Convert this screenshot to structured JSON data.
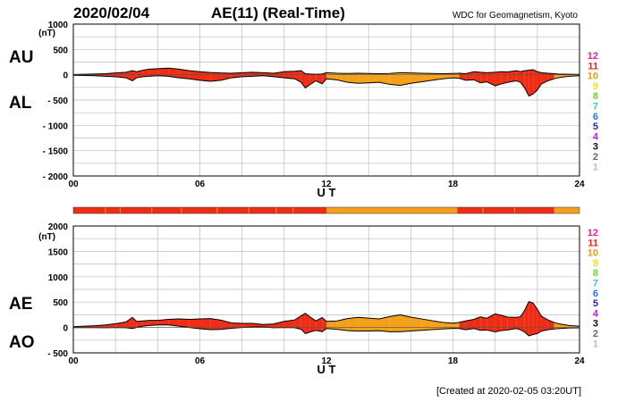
{
  "header": {
    "date": "2020/02/04",
    "title": "AE(11) (Real-Time)",
    "source": "WDC for Geomagnetism, Kyoto"
  },
  "footer": {
    "created": "[Created at 2020-02-05 03:20UT]"
  },
  "colors": {
    "active_fill": "#ee2d14",
    "quiet_fill": "#f3a11b",
    "outline": "#000000",
    "grid": "#bdbdbd"
  },
  "station_levels": [
    {
      "label": "12",
      "color": "#ee1f8c"
    },
    {
      "label": "11",
      "color": "#e8261a"
    },
    {
      "label": "10",
      "color": "#f29a12"
    },
    {
      "label": "9",
      "color": "#e9e21c"
    },
    {
      "label": "8",
      "color": "#79d12a"
    },
    {
      "label": "7",
      "color": "#34c6e0"
    },
    {
      "label": "6",
      "color": "#2474e6"
    },
    {
      "label": "5",
      "color": "#2b1fa6"
    },
    {
      "label": "4",
      "color": "#c21ddb"
    },
    {
      "label": "3",
      "color": "#111111"
    },
    {
      "label": "2",
      "color": "#666666"
    },
    {
      "label": "1",
      "color": "#bbbbbb"
    }
  ],
  "availability_bar": {
    "segments": [
      {
        "start": 0,
        "end": 12,
        "level": "11"
      },
      {
        "start": 12,
        "end": 18.2,
        "level": "10"
      },
      {
        "start": 18.2,
        "end": 22.8,
        "level": "11"
      },
      {
        "start": 22.8,
        "end": 24,
        "level": "10"
      }
    ]
  },
  "chart_data": [
    {
      "type": "area",
      "panel": "AU/AL",
      "series_labels": [
        "AU",
        "AL"
      ],
      "unit": "(nT)",
      "xlabel": "U T",
      "xlim": [
        0,
        24
      ],
      "ylim": [
        -2000,
        1000
      ],
      "x_ticks": [
        "00",
        "06",
        "12",
        "18",
        "24"
      ],
      "y_ticks": [
        "1000",
        "500",
        "0",
        "- 500",
        "- 1000",
        "- 1500",
        "- 2000"
      ],
      "y_tick_values": [
        1000,
        500,
        0,
        -500,
        -1000,
        -1500,
        -2000
      ],
      "time_hours": [
        0,
        0.5,
        1,
        1.5,
        2,
        2.5,
        2.8,
        3,
        3.3,
        3.6,
        4,
        4.5,
        5,
        5.5,
        6,
        6.5,
        7,
        7.5,
        8,
        8.5,
        9,
        9.5,
        10,
        10.5,
        10.8,
        11,
        11.2,
        11.5,
        11.8,
        12,
        12.5,
        13,
        13.5,
        14,
        14.5,
        15,
        15.5,
        16,
        16.5,
        17,
        17.5,
        18,
        18.3,
        18.6,
        19,
        19.3,
        19.6,
        20,
        20.3,
        20.6,
        21,
        21.2,
        21.4,
        21.6,
        21.8,
        22,
        22.2,
        22.5,
        22.8,
        23,
        23.5,
        24
      ],
      "AU": [
        5,
        10,
        15,
        20,
        35,
        50,
        80,
        60,
        90,
        110,
        120,
        130,
        110,
        80,
        60,
        45,
        35,
        30,
        40,
        50,
        40,
        30,
        60,
        70,
        80,
        20,
        15,
        10,
        15,
        40,
        30,
        25,
        30,
        25,
        20,
        25,
        40,
        35,
        30,
        25,
        20,
        25,
        30,
        20,
        60,
        50,
        40,
        50,
        60,
        55,
        80,
        60,
        80,
        90,
        100,
        60,
        40,
        30,
        20,
        15,
        10,
        5
      ],
      "AL": [
        -10,
        -15,
        -20,
        -30,
        -40,
        -60,
        -120,
        -60,
        -40,
        -30,
        -20,
        -30,
        -60,
        -80,
        -110,
        -130,
        -110,
        -60,
        -40,
        -30,
        -20,
        -40,
        -60,
        -80,
        -150,
        -260,
        -200,
        -120,
        -180,
        -80,
        -100,
        -150,
        -170,
        -160,
        -150,
        -190,
        -210,
        -170,
        -140,
        -110,
        -80,
        -60,
        -70,
        -110,
        -100,
        -160,
        -140,
        -220,
        -180,
        -150,
        -120,
        -150,
        -260,
        -420,
        -380,
        -300,
        -180,
        -120,
        -80,
        -60,
        -30,
        -20
      ]
    },
    {
      "type": "area",
      "panel": "AE/AO",
      "series_labels": [
        "AE",
        "AO"
      ],
      "unit": "(nT)",
      "xlabel": "U T",
      "xlim": [
        0,
        24
      ],
      "ylim": [
        -500,
        2000
      ],
      "x_ticks": [
        "00",
        "06",
        "12",
        "18",
        "24"
      ],
      "y_ticks": [
        "2000",
        "1500",
        "1000",
        "500",
        "0",
        "- 500"
      ],
      "y_tick_values": [
        2000,
        1500,
        1000,
        500,
        0,
        -500
      ],
      "time_hours": [
        0,
        0.5,
        1,
        1.5,
        2,
        2.5,
        2.8,
        3,
        3.3,
        3.6,
        4,
        4.5,
        5,
        5.5,
        6,
        6.5,
        7,
        7.5,
        8,
        8.5,
        9,
        9.5,
        10,
        10.5,
        10.8,
        11,
        11.2,
        11.5,
        11.8,
        12,
        12.5,
        13,
        13.5,
        14,
        14.5,
        15,
        15.5,
        16,
        16.5,
        17,
        17.5,
        18,
        18.3,
        18.6,
        19,
        19.3,
        19.6,
        20,
        20.3,
        20.6,
        21,
        21.2,
        21.4,
        21.6,
        21.8,
        22,
        22.2,
        22.5,
        22.8,
        23,
        23.5,
        24
      ],
      "AE": [
        15,
        25,
        35,
        50,
        75,
        110,
        200,
        120,
        130,
        140,
        140,
        160,
        170,
        160,
        170,
        175,
        145,
        90,
        80,
        80,
        60,
        70,
        120,
        150,
        230,
        280,
        215,
        130,
        195,
        120,
        130,
        175,
        200,
        185,
        170,
        215,
        250,
        205,
        170,
        135,
        100,
        85,
        100,
        130,
        160,
        210,
        180,
        270,
        240,
        205,
        200,
        210,
        340,
        510,
        480,
        360,
        220,
        150,
        100,
        75,
        40,
        25
      ],
      "AO": [
        -3,
        -3,
        -3,
        -5,
        -3,
        -5,
        -20,
        0,
        25,
        40,
        50,
        50,
        25,
        0,
        -25,
        -43,
        -38,
        -15,
        0,
        10,
        10,
        -5,
        0,
        -5,
        -35,
        -120,
        -93,
        -55,
        -83,
        -20,
        -35,
        -63,
        -70,
        -68,
        -65,
        -83,
        -85,
        -68,
        -55,
        -43,
        -30,
        -18,
        -20,
        -45,
        -20,
        -55,
        -50,
        -85,
        -60,
        -48,
        -20,
        -45,
        -90,
        -165,
        -140,
        -120,
        -70,
        -45,
        -30,
        -23,
        -10,
        -8
      ]
    }
  ]
}
